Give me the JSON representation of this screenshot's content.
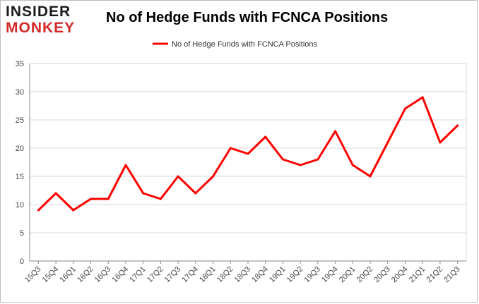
{
  "logo": {
    "line1": "INSIDER",
    "line2": "MONKEY"
  },
  "chart_data": {
    "type": "line",
    "title": "No of Hedge Funds with FCNCA Positions",
    "xlabel": "",
    "ylabel": "",
    "categories": [
      "15Q3",
      "15Q4",
      "16Q1",
      "16Q2",
      "16Q3",
      "16Q4",
      "17Q1",
      "17Q2",
      "17Q3",
      "17Q4",
      "18Q1",
      "18Q2",
      "18Q3",
      "18Q4",
      "19Q1",
      "19Q2",
      "19Q3",
      "19Q4",
      "20Q1",
      "20Q2",
      "20Q3",
      "20Q4",
      "21Q1",
      "21Q2",
      "21Q3"
    ],
    "series": [
      {
        "name": "No of Hedge Funds with FCNCA Positions",
        "color": "#ff0000",
        "values": [
          9,
          12,
          9,
          11,
          11,
          17,
          12,
          11,
          15,
          12,
          15,
          20,
          19,
          22,
          18,
          17,
          18,
          23,
          17,
          15,
          21,
          27,
          29,
          21,
          24
        ]
      }
    ],
    "ylim": [
      0,
      35
    ],
    "yticks": [
      0,
      5,
      10,
      15,
      20,
      25,
      30,
      35
    ],
    "grid": true,
    "legend": "top-center"
  }
}
